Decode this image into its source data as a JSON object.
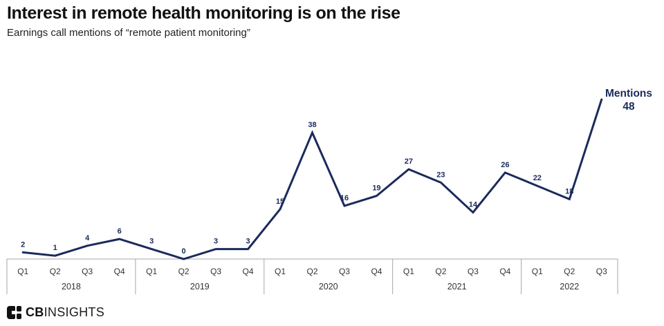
{
  "chart_data": {
    "type": "line",
    "title": "Interest in remote health monitoring is on the rise",
    "subtitle": "Earnings call mentions of “remote patient monitoring”",
    "series_label": "Mentions",
    "years": [
      {
        "year": "2018",
        "quarters": [
          "Q1",
          "Q2",
          "Q3",
          "Q4"
        ]
      },
      {
        "year": "2019",
        "quarters": [
          "Q1",
          "Q2",
          "Q3",
          "Q4"
        ]
      },
      {
        "year": "2020",
        "quarters": [
          "Q1",
          "Q2",
          "Q3",
          "Q4"
        ]
      },
      {
        "year": "2021",
        "quarters": [
          "Q1",
          "Q2",
          "Q3",
          "Q4"
        ]
      },
      {
        "year": "2022",
        "quarters": [
          "Q1",
          "Q2",
          "Q3"
        ]
      }
    ],
    "categories": [
      "Q1 2018",
      "Q2 2018",
      "Q3 2018",
      "Q4 2018",
      "Q1 2019",
      "Q2 2019",
      "Q3 2019",
      "Q4 2019",
      "Q1 2020",
      "Q2 2020",
      "Q3 2020",
      "Q4 2020",
      "Q1 2021",
      "Q2 2021",
      "Q3 2021",
      "Q4 2021",
      "Q1 2022",
      "Q2 2022",
      "Q3 2022"
    ],
    "values": [
      2,
      1,
      4,
      6,
      3,
      0,
      3,
      3,
      15,
      38,
      16,
      19,
      27,
      23,
      14,
      26,
      22,
      18,
      48
    ],
    "final_value": 48,
    "ylim": [
      0,
      48
    ],
    "grid": false,
    "legend_position": "top-right",
    "line_color": "#1b2a5c",
    "data_label_color": "#1b2a5c",
    "legend_color": "#1b2a5c",
    "axis_color": "#a6a6a6",
    "tick_label_color": "#333333"
  },
  "footer": {
    "logo_cb": "CB",
    "logo_insights": "INSIGHTS"
  }
}
